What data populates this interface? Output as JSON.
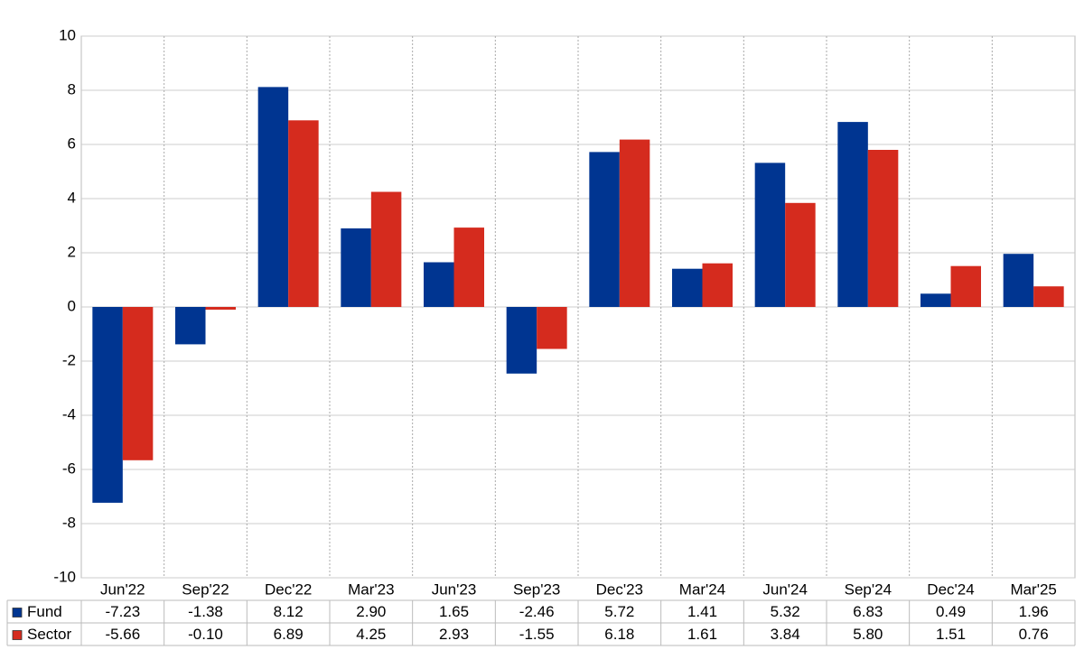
{
  "chart_data": {
    "type": "bar",
    "categories": [
      "Jun'22",
      "Sep'22",
      "Dec'22",
      "Mar'23",
      "Jun'23",
      "Sep'23",
      "Dec'23",
      "Mar'24",
      "Jun'24",
      "Sep'24",
      "Dec'24",
      "Mar'25"
    ],
    "series": [
      {
        "name": "Fund",
        "color": "#003591",
        "values": [
          -7.23,
          -1.38,
          8.12,
          2.9,
          1.65,
          -2.46,
          5.72,
          1.41,
          5.32,
          6.83,
          0.49,
          1.96
        ],
        "value_labels": [
          "-7.23",
          "-1.38",
          "8.12",
          "2.90",
          "1.65",
          "-2.46",
          "5.72",
          "1.41",
          "5.32",
          "6.83",
          "0.49",
          "1.96"
        ]
      },
      {
        "name": "Sector",
        "color": "#d52b1e",
        "values": [
          -5.66,
          -0.1,
          6.89,
          4.25,
          2.93,
          -1.55,
          6.18,
          1.61,
          3.84,
          5.8,
          1.51,
          0.76
        ],
        "value_labels": [
          "-5.66",
          "-0.10",
          "6.89",
          "4.25",
          "2.93",
          "-1.55",
          "6.18",
          "1.61",
          "3.84",
          "5.80",
          "1.51",
          "0.76"
        ]
      }
    ],
    "ylim": [
      -10,
      10
    ],
    "yticks": [
      -10,
      -8,
      -6,
      -4,
      -2,
      0,
      2,
      4,
      6,
      8,
      10
    ],
    "grid": true
  }
}
